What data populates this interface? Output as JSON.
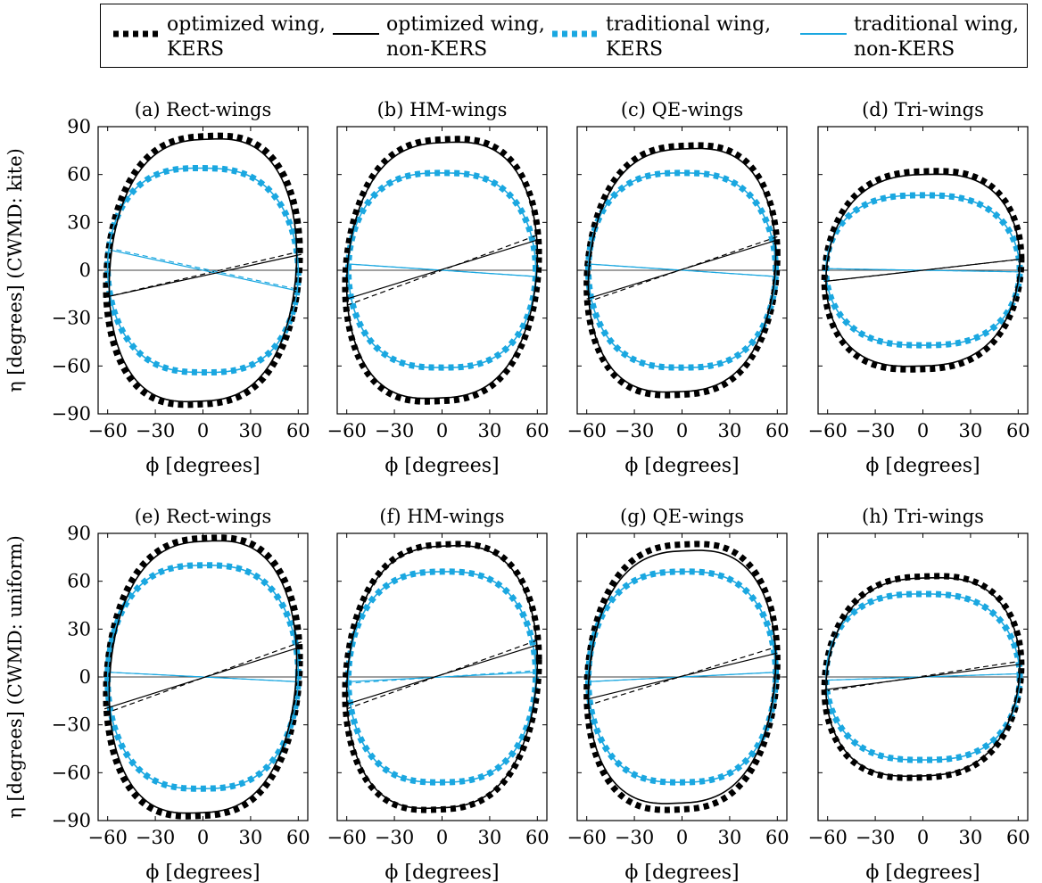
{
  "legend": [
    {
      "label_line1": "optimized wing,",
      "label_line2": "KERS",
      "color": "#000000",
      "style": "dotted-thick"
    },
    {
      "label_line1": "optimized wing,",
      "label_line2": "non-KERS",
      "color": "#000000",
      "style": "solid-thin"
    },
    {
      "label_line1": "traditional wing,",
      "label_line2": "KERS",
      "color": "#1aa7e0",
      "style": "dotted-thick"
    },
    {
      "label_line1": "traditional wing,",
      "label_line2": "non-KERS",
      "color": "#1aa7e0",
      "style": "solid-thin"
    }
  ],
  "rows": [
    {
      "ylabel": "η [degrees] (CWMD: kite)"
    },
    {
      "ylabel": "η [degrees] (CWMD: uniform)"
    }
  ],
  "xlabel": "ϕ [degrees]",
  "xticks": [
    -60,
    -30,
    0,
    30,
    60
  ],
  "yticks": [
    -90,
    -60,
    -30,
    0,
    30,
    60,
    90
  ],
  "xlim": [
    -66,
    66
  ],
  "ylim": [
    -90,
    90
  ],
  "chart_data": [
    {
      "type": "line",
      "title": "(a) Rect-wings",
      "series": [
        {
          "name": "optimized wing, KERS",
          "center": [
            0,
            0
          ],
          "phi_amp": 61,
          "eta_amp": 84,
          "tilt": 0.32,
          "stroke_line": [
            [
              -62,
              -17
            ],
            [
              62,
              12
            ]
          ]
        },
        {
          "name": "optimized wing, non-KERS",
          "center": [
            0,
            0
          ],
          "phi_amp": 59,
          "eta_amp": 82,
          "tilt": 0.32,
          "stroke_line": [
            [
              -62,
              -17
            ],
            [
              62,
              10
            ]
          ]
        },
        {
          "name": "traditional wing, KERS",
          "center": [
            0,
            0
          ],
          "phi_amp": 60,
          "eta_amp": 64,
          "tilt": -0.05,
          "stroke_line": [
            [
              -60,
              14
            ],
            [
              60,
              -12
            ]
          ]
        },
        {
          "name": "traditional wing, non-KERS",
          "center": [
            0,
            0
          ],
          "phi_amp": 60,
          "eta_amp": 64,
          "tilt": -0.05,
          "stroke_line": [
            [
              -60,
              13
            ],
            [
              60,
              -13
            ]
          ]
        }
      ]
    },
    {
      "type": "line",
      "title": "(b) HM-wings",
      "series": [
        {
          "name": "optimized wing, KERS",
          "center": [
            0,
            0
          ],
          "phi_amp": 61,
          "eta_amp": 82,
          "tilt": 0.3,
          "stroke_line": [
            [
              -60,
              -22
            ],
            [
              60,
              22
            ]
          ]
        },
        {
          "name": "optimized wing, non-KERS",
          "center": [
            0,
            0
          ],
          "phi_amp": 60,
          "eta_amp": 80,
          "tilt": 0.3,
          "stroke_line": [
            [
              -60,
              -18
            ],
            [
              60,
              19
            ]
          ]
        },
        {
          "name": "traditional wing, KERS",
          "center": [
            0,
            0
          ],
          "phi_amp": 59,
          "eta_amp": 61,
          "tilt": 0.0,
          "stroke_line": [
            [
              -60,
              4
            ],
            [
              60,
              -4
            ]
          ]
        },
        {
          "name": "traditional wing, non-KERS",
          "center": [
            0,
            0
          ],
          "phi_amp": 59,
          "eta_amp": 61,
          "tilt": 0.0,
          "stroke_line": [
            [
              -60,
              4
            ],
            [
              60,
              -4
            ]
          ]
        }
      ]
    },
    {
      "type": "line",
      "title": "(c) QE-wings",
      "series": [
        {
          "name": "optimized wing, KERS",
          "center": [
            0,
            0
          ],
          "phi_amp": 60,
          "eta_amp": 78,
          "tilt": 0.3,
          "stroke_line": [
            [
              -60,
              -20
            ],
            [
              60,
              21
            ]
          ]
        },
        {
          "name": "optimized wing, non-KERS",
          "center": [
            0,
            0
          ],
          "phi_amp": 59,
          "eta_amp": 76,
          "tilt": 0.3,
          "stroke_line": [
            [
              -60,
              -18
            ],
            [
              60,
              19
            ]
          ]
        },
        {
          "name": "traditional wing, KERS",
          "center": [
            0,
            0
          ],
          "phi_amp": 59,
          "eta_amp": 61,
          "tilt": 0.0,
          "stroke_line": [
            [
              -60,
              4
            ],
            [
              60,
              -4
            ]
          ]
        },
        {
          "name": "traditional wing, non-KERS",
          "center": [
            0,
            0
          ],
          "phi_amp": 59,
          "eta_amp": 61,
          "tilt": 0.0,
          "stroke_line": [
            [
              -60,
              4
            ],
            [
              60,
              -4
            ]
          ]
        }
      ]
    },
    {
      "type": "line",
      "title": "(d) Tri-wings",
      "series": [
        {
          "name": "optimized wing, KERS",
          "center": [
            0,
            0
          ],
          "phi_amp": 62,
          "eta_amp": 62,
          "tilt": 0.2,
          "stroke_line": [
            [
              -62,
              -7
            ],
            [
              62,
              7
            ]
          ]
        },
        {
          "name": "optimized wing, non-KERS",
          "center": [
            0,
            0
          ],
          "phi_amp": 61,
          "eta_amp": 60,
          "tilt": 0.2,
          "stroke_line": [
            [
              -62,
              -7
            ],
            [
              62,
              7
            ]
          ]
        },
        {
          "name": "traditional wing, KERS",
          "center": [
            0,
            0
          ],
          "phi_amp": 61,
          "eta_amp": 47,
          "tilt": 0.0,
          "stroke_line": [
            [
              -60,
              1
            ],
            [
              60,
              -1
            ]
          ]
        },
        {
          "name": "traditional wing, non-KERS",
          "center": [
            0,
            0
          ],
          "phi_amp": 61,
          "eta_amp": 47,
          "tilt": 0.0,
          "stroke_line": [
            [
              -60,
              1
            ],
            [
              60,
              -1
            ]
          ]
        }
      ]
    },
    {
      "type": "line",
      "title": "(e) Rect-wings",
      "series": [
        {
          "name": "optimized wing, KERS",
          "center": [
            0,
            0
          ],
          "phi_amp": 61,
          "eta_amp": 87,
          "tilt": 0.33,
          "stroke_line": [
            [
              -62,
              -23
            ],
            [
              62,
              22
            ]
          ]
        },
        {
          "name": "optimized wing, non-KERS",
          "center": [
            0,
            0
          ],
          "phi_amp": 59,
          "eta_amp": 85,
          "tilt": 0.33,
          "stroke_line": [
            [
              -62,
              -20
            ],
            [
              62,
              19
            ]
          ]
        },
        {
          "name": "traditional wing, KERS",
          "center": [
            0,
            0
          ],
          "phi_amp": 60,
          "eta_amp": 70,
          "tilt": 0.05,
          "stroke_line": [
            [
              -60,
              3
            ],
            [
              60,
              -3
            ]
          ]
        },
        {
          "name": "traditional wing, non-KERS",
          "center": [
            0,
            0
          ],
          "phi_amp": 60,
          "eta_amp": 70,
          "tilt": 0.05,
          "stroke_line": [
            [
              -60,
              3
            ],
            [
              60,
              -3
            ]
          ]
        }
      ]
    },
    {
      "type": "line",
      "title": "(f) HM-wings",
      "series": [
        {
          "name": "optimized wing, KERS",
          "center": [
            0,
            0
          ],
          "phi_amp": 61,
          "eta_amp": 83,
          "tilt": 0.32,
          "stroke_line": [
            [
              -60,
              -20
            ],
            [
              60,
              23
            ]
          ]
        },
        {
          "name": "optimized wing, non-KERS",
          "center": [
            0,
            0
          ],
          "phi_amp": 60,
          "eta_amp": 82,
          "tilt": 0.32,
          "stroke_line": [
            [
              -60,
              -17
            ],
            [
              60,
              20
            ]
          ]
        },
        {
          "name": "traditional wing, KERS",
          "center": [
            0,
            0
          ],
          "phi_amp": 59,
          "eta_amp": 66,
          "tilt": 0.05,
          "stroke_line": [
            [
              -60,
              -4
            ],
            [
              60,
              4
            ]
          ]
        },
        {
          "name": "traditional wing, non-KERS",
          "center": [
            0,
            0
          ],
          "phi_amp": 59,
          "eta_amp": 66,
          "tilt": 0.05,
          "stroke_line": [
            [
              -60,
              -3
            ],
            [
              60,
              3
            ]
          ]
        }
      ]
    },
    {
      "type": "line",
      "title": "(g) QE-wings",
      "series": [
        {
          "name": "optimized wing, KERS",
          "center": [
            0,
            0
          ],
          "phi_amp": 60,
          "eta_amp": 83,
          "tilt": 0.32,
          "stroke_line": [
            [
              -60,
              -18
            ],
            [
              60,
              19
            ]
          ]
        },
        {
          "name": "optimized wing, non-KERS",
          "center": [
            0,
            0
          ],
          "phi_amp": 59,
          "eta_amp": 79,
          "tilt": 0.32,
          "stroke_line": [
            [
              -60,
              -14
            ],
            [
              60,
              15
            ]
          ]
        },
        {
          "name": "traditional wing, KERS",
          "center": [
            0,
            0
          ],
          "phi_amp": 59,
          "eta_amp": 66,
          "tilt": 0.05,
          "stroke_line": [
            [
              -60,
              -3
            ],
            [
              60,
              3
            ]
          ]
        },
        {
          "name": "traditional wing, non-KERS",
          "center": [
            0,
            0
          ],
          "phi_amp": 59,
          "eta_amp": 66,
          "tilt": 0.05,
          "stroke_line": [
            [
              -60,
              -3
            ],
            [
              60,
              3
            ]
          ]
        }
      ]
    },
    {
      "type": "line",
      "title": "(h) Tri-wings",
      "series": [
        {
          "name": "optimized wing, KERS",
          "center": [
            0,
            0
          ],
          "phi_amp": 62,
          "eta_amp": 63,
          "tilt": 0.22,
          "stroke_line": [
            [
              -62,
              -9
            ],
            [
              62,
              10
            ]
          ]
        },
        {
          "name": "optimized wing, non-KERS",
          "center": [
            0,
            0
          ],
          "phi_amp": 61,
          "eta_amp": 62,
          "tilt": 0.22,
          "stroke_line": [
            [
              -62,
              -8
            ],
            [
              62,
              8
            ]
          ]
        },
        {
          "name": "traditional wing, KERS",
          "center": [
            0,
            0
          ],
          "phi_amp": 61,
          "eta_amp": 52,
          "tilt": 0.0,
          "stroke_line": [
            [
              -60,
              -2
            ],
            [
              60,
              2
            ]
          ]
        },
        {
          "name": "traditional wing, non-KERS",
          "center": [
            0,
            0
          ],
          "phi_amp": 61,
          "eta_amp": 52,
          "tilt": 0.0,
          "stroke_line": [
            [
              -60,
              -2
            ],
            [
              60,
              2
            ]
          ]
        }
      ]
    }
  ]
}
